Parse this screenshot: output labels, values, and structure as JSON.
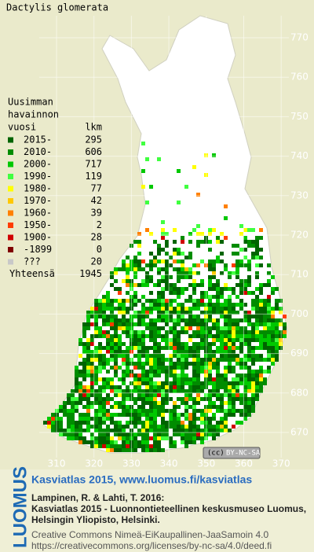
{
  "title": "Dactylis glomerata",
  "legend": {
    "heading": [
      "Uusimman",
      "havainnon",
      "vuosi"
    ],
    "count_heading": "lkm",
    "items": [
      {
        "label": "2015-",
        "count": 295,
        "color": "#006400"
      },
      {
        "label": "2010-",
        "count": 606,
        "color": "#008c00"
      },
      {
        "label": "2000-",
        "count": 717,
        "color": "#00c800"
      },
      {
        "label": "1990-",
        "count": 119,
        "color": "#40ff40"
      },
      {
        "label": "1980-",
        "count": 77,
        "color": "#ffff00"
      },
      {
        "label": "1970-",
        "count": 42,
        "color": "#ffc800"
      },
      {
        "label": "1960-",
        "count": 39,
        "color": "#ff8000"
      },
      {
        "label": "1950-",
        "count": 2,
        "color": "#ff3c00"
      },
      {
        "label": "1900-",
        "count": 28,
        "color": "#d00000"
      },
      {
        "label": "-1899",
        "count": 0,
        "color": "#800000"
      },
      {
        "label": "???",
        "count": 20,
        "color": "#c8c8c8"
      }
    ],
    "total_label": "Yhteensä",
    "total": 1945
  },
  "map": {
    "yticks": [
      770,
      760,
      750,
      740,
      730,
      720,
      710,
      700,
      690,
      680,
      670
    ],
    "xticks": [
      310,
      320,
      330,
      340,
      350,
      360,
      370
    ],
    "badge": "BY-NC-SA"
  },
  "footer": {
    "logo": "LUOMUS",
    "link": "Kasviatlas 2015, www.luomus.fi/kasviatlas",
    "citation": [
      "Lampinen, R. & Lahti, T. 2016:",
      "Kasviatlas 2015 - Luonnontieteellinen keskusmuseo Luomus,",
      "Helsingin Yliopisto, Helsinki."
    ],
    "license": [
      "Creative Commons Nimeä-EiKaupallinen-JaaSamoin 4.0",
      "https://creativecommons.org/licenses/by-nc-sa/4.0/deed.fi"
    ]
  }
}
